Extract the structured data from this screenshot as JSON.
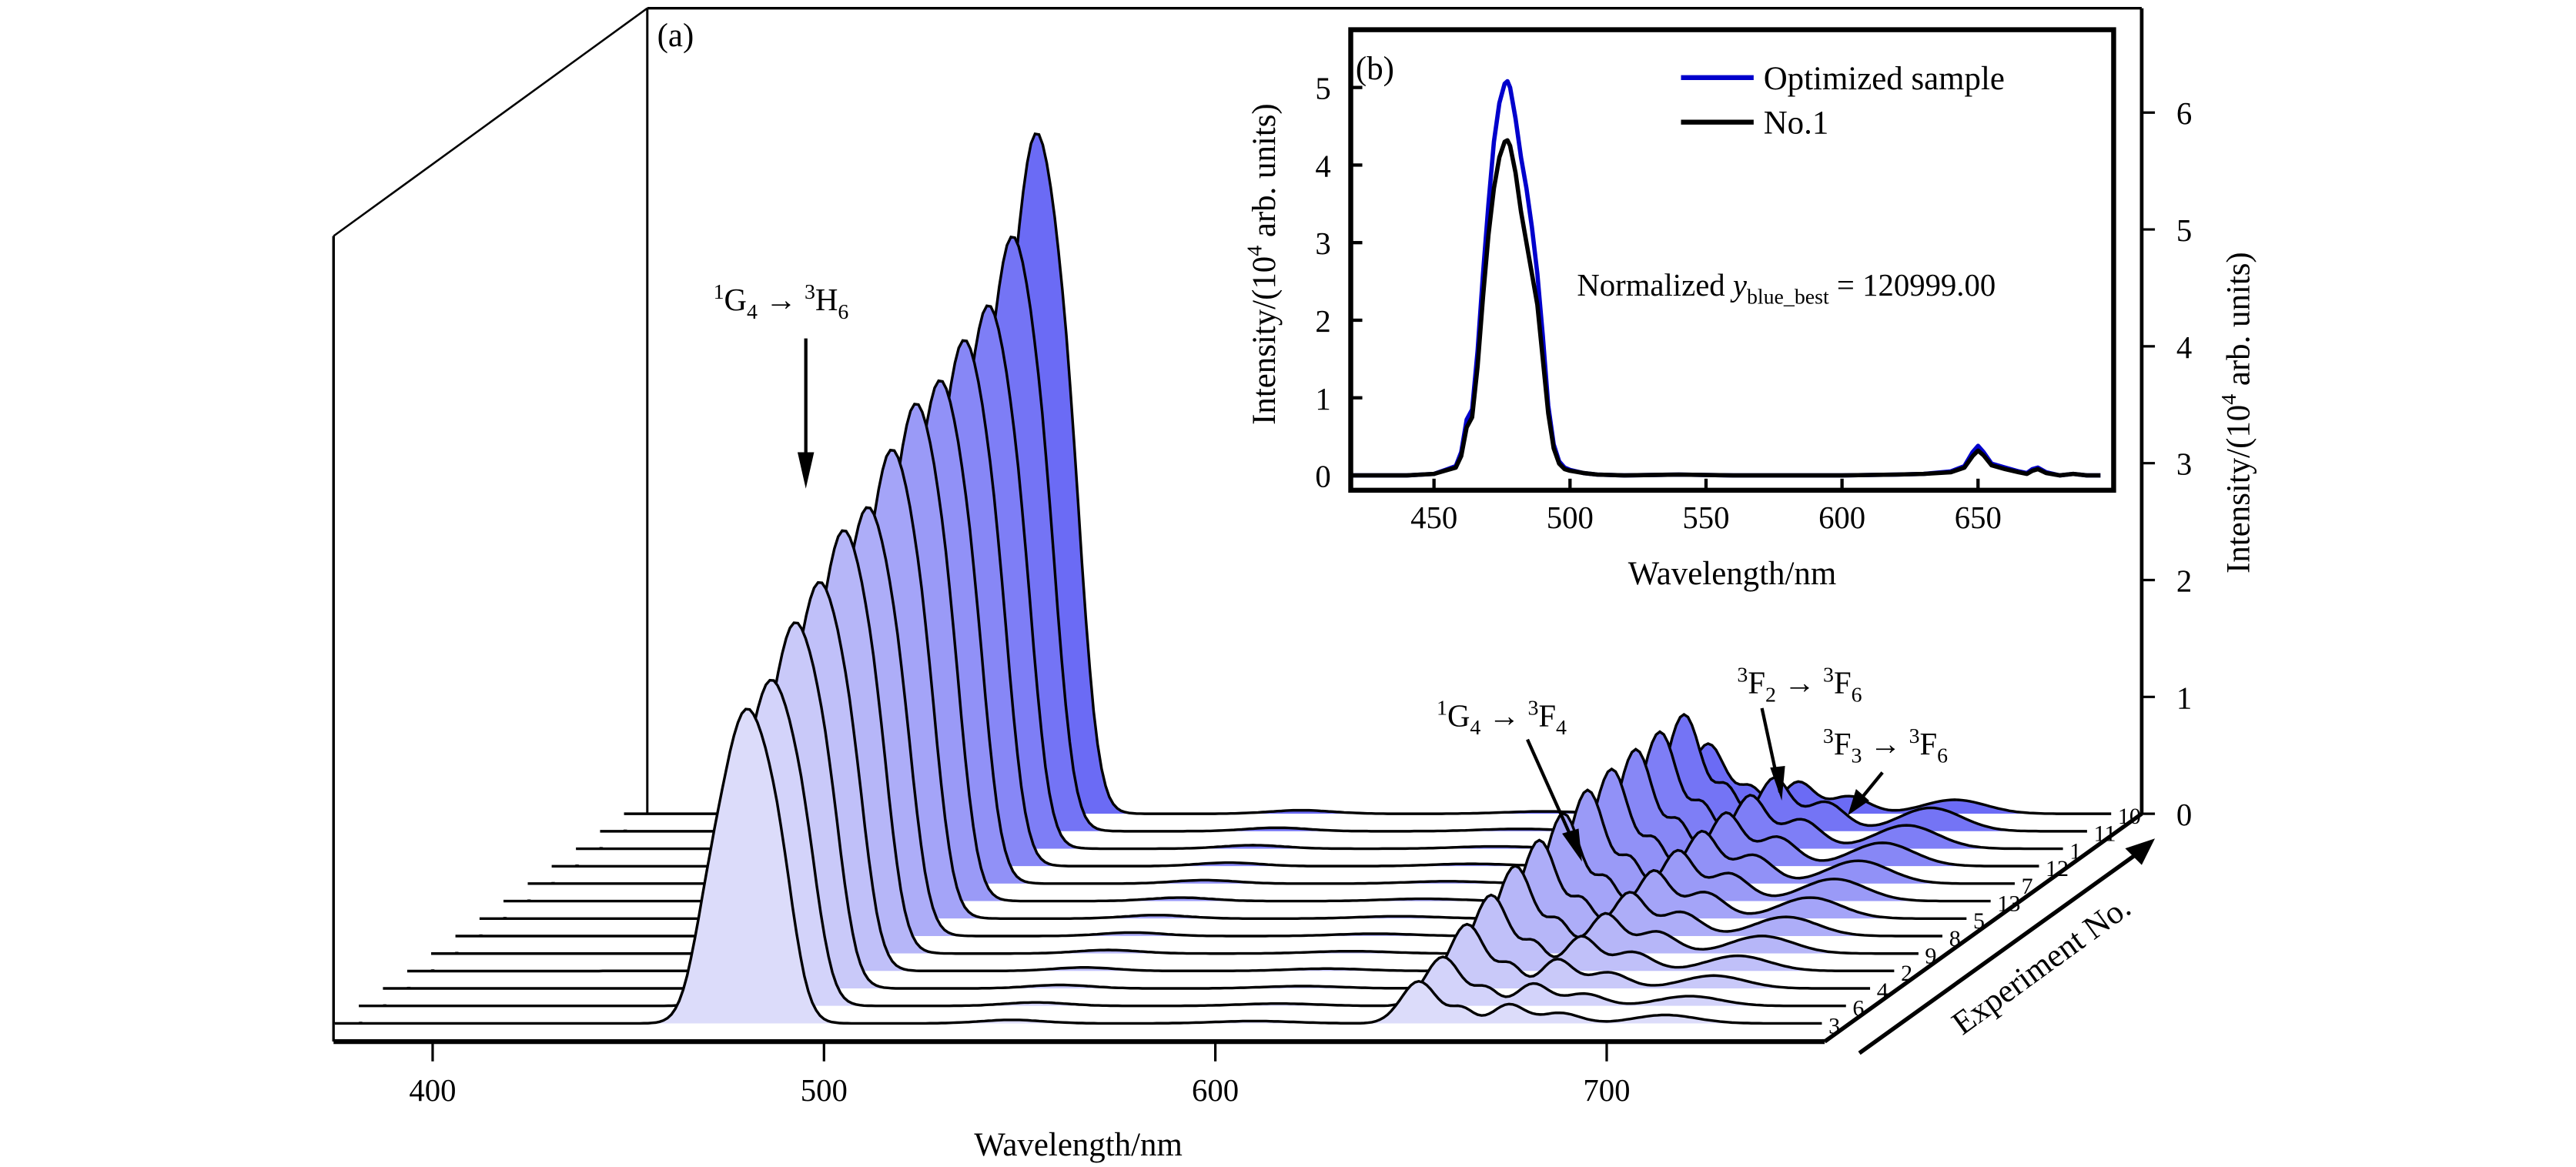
{
  "chart_data": [
    {
      "panel": "(a)",
      "type": "area",
      "subtype": "3d-waterfall",
      "xlabel": "Wavelength/nm",
      "ylabel": "Intensity/(10^4 arb. units)",
      "zlabel": "Experiment No.",
      "xticks": [
        400,
        500,
        600,
        700
      ],
      "xlim": [
        375,
        755
      ],
      "yticks": [
        0,
        1,
        2,
        3,
        4,
        5,
        6
      ],
      "ylim": [
        0,
        6.8
      ],
      "grid": false,
      "series_order_front_to_back": [
        "3",
        "6",
        "4",
        "2",
        "9",
        "8",
        "5",
        "13",
        "7",
        "12",
        "1",
        "11",
        "10"
      ],
      "series": [
        {
          "name": "3",
          "peak_480nm": 2.75,
          "peak_652nm": 0.36
        },
        {
          "name": "6",
          "peak_480nm": 2.85,
          "peak_652nm": 0.42
        },
        {
          "name": "4",
          "peak_480nm": 3.2,
          "peak_652nm": 0.55
        },
        {
          "name": "2",
          "peak_480nm": 3.4,
          "peak_652nm": 0.65
        },
        {
          "name": "9",
          "peak_480nm": 3.7,
          "peak_652nm": 0.75
        },
        {
          "name": "8",
          "peak_480nm": 3.75,
          "peak_652nm": 0.82
        },
        {
          "name": "5",
          "peak_480nm": 4.1,
          "peak_652nm": 0.9
        },
        {
          "name": "13",
          "peak_480nm": 4.35,
          "peak_652nm": 0.95
        },
        {
          "name": "7",
          "peak_480nm": 4.4,
          "peak_652nm": 0.98
        },
        {
          "name": "12",
          "peak_480nm": 4.6,
          "peak_652nm": 1.0
        },
        {
          "name": "1",
          "peak_480nm": 4.75,
          "peak_652nm": 1.0
        },
        {
          "name": "11",
          "peak_480nm": 5.2,
          "peak_652nm": 1.0
        },
        {
          "name": "10",
          "peak_480nm": 5.95,
          "peak_652nm": 0.6
        }
      ],
      "annotations": [
        {
          "text": "1G4 → 3H6",
          "parts": [
            "1",
            "G",
            "4",
            "→",
            "3",
            "H",
            "6"
          ],
          "points_to_nm": 480
        },
        {
          "text": "1G4 → 3F4",
          "parts": [
            "1",
            "G",
            "4",
            "→",
            "3",
            "F",
            "4"
          ],
          "points_to_nm": 652
        },
        {
          "text": "3F2 → 3F6",
          "parts": [
            "3",
            "F",
            "2",
            "→",
            "3",
            "F",
            "6"
          ],
          "points_to_nm": 690
        },
        {
          "text": "3F3 → 3F6",
          "parts": [
            "3",
            "F",
            "3",
            "→",
            "3",
            "F",
            "6"
          ],
          "points_to_nm": 705
        }
      ],
      "colors": {
        "front": "#dcdcfa",
        "back": "#6b6bf5",
        "line": "#000000"
      }
    },
    {
      "panel": "(b)",
      "type": "line",
      "xlabel": "Wavelength/nm",
      "ylabel": "Intensity/(10^4 arb. units)",
      "xticks": [
        450,
        500,
        550,
        600,
        650
      ],
      "xlim": [
        420,
        695
      ],
      "yticks": [
        0,
        1,
        2,
        3,
        4,
        5
      ],
      "ylim": [
        -0.05,
        5.7
      ],
      "legend": "top-right",
      "annotation": "Normalized y_blue_best = 120999.00",
      "series": [
        {
          "name": "Optimized sample",
          "color": "#0000cc",
          "x": [
            420,
            440,
            450,
            455,
            458,
            460,
            462,
            464,
            466,
            468,
            470,
            472,
            474,
            476,
            477,
            478,
            480,
            482,
            484,
            486,
            488,
            490,
            492,
            494,
            496,
            498,
            500,
            505,
            510,
            520,
            540,
            560,
            580,
            600,
            620,
            630,
            640,
            645,
            648,
            650,
            652,
            655,
            660,
            665,
            668,
            670,
            672,
            675,
            680,
            685,
            690,
            695
          ],
          "y": [
            0,
            0,
            0.02,
            0.08,
            0.12,
            0.3,
            0.72,
            0.85,
            1.6,
            2.6,
            3.5,
            4.3,
            4.8,
            5.05,
            5.08,
            5.0,
            4.6,
            4.1,
            3.7,
            3.2,
            2.6,
            1.8,
            0.9,
            0.4,
            0.18,
            0.1,
            0.07,
            0.03,
            0.01,
            0.0,
            0.01,
            0.0,
            0.0,
            0.0,
            0.01,
            0.02,
            0.05,
            0.12,
            0.3,
            0.38,
            0.3,
            0.15,
            0.1,
            0.05,
            0.03,
            0.08,
            0.1,
            0.04,
            0.0,
            0.02,
            0.0,
            0.0
          ]
        },
        {
          "name": "No.1",
          "color": "#000000",
          "x": [
            420,
            440,
            450,
            455,
            458,
            460,
            462,
            464,
            466,
            468,
            470,
            472,
            474,
            476,
            477,
            478,
            480,
            482,
            484,
            486,
            488,
            490,
            492,
            494,
            496,
            498,
            500,
            505,
            510,
            520,
            540,
            560,
            580,
            600,
            620,
            630,
            640,
            645,
            648,
            650,
            652,
            655,
            660,
            665,
            668,
            670,
            672,
            675,
            680,
            685,
            690,
            695
          ],
          "y": [
            0,
            0,
            0.02,
            0.07,
            0.1,
            0.25,
            0.62,
            0.75,
            1.4,
            2.3,
            3.1,
            3.7,
            4.1,
            4.3,
            4.32,
            4.25,
            3.9,
            3.4,
            3.0,
            2.6,
            2.2,
            1.5,
            0.8,
            0.35,
            0.15,
            0.08,
            0.06,
            0.03,
            0.01,
            0.0,
            0.01,
            0.0,
            0.0,
            0.0,
            0.01,
            0.02,
            0.04,
            0.1,
            0.25,
            0.32,
            0.26,
            0.13,
            0.08,
            0.04,
            0.02,
            0.06,
            0.08,
            0.03,
            0.0,
            0.02,
            0.0,
            0.0
          ]
        }
      ]
    }
  ]
}
